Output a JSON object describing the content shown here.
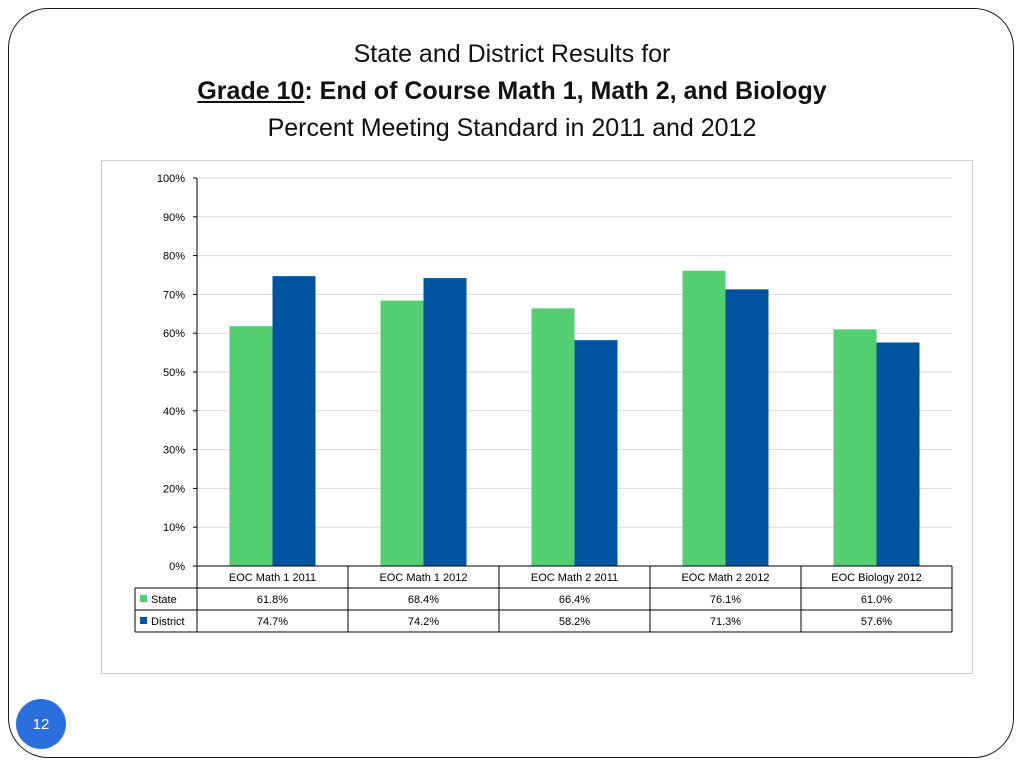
{
  "title": {
    "line1": "State and District Results for",
    "line2_grade": "Grade 10",
    "line2_rest": ": End of Course Math 1, Math 2, and Biology",
    "line3": "Percent Meeting Standard in 2011 and 2012"
  },
  "page_number": "12",
  "colors": {
    "state": "#53cf72",
    "district": "#00539f",
    "gridline": "#d9d9d9",
    "axis": "#000000"
  },
  "chart_data": {
    "type": "bar",
    "categories": [
      "EOC Math 1 2011",
      "EOC Math 1 2012",
      "EOC Math 2 2011",
      "EOC Math 2 2012",
      "EOC Biology 2012"
    ],
    "series": [
      {
        "name": "State",
        "values": [
          61.8,
          68.4,
          66.4,
          76.1,
          61.0
        ],
        "labels": [
          "61.8%",
          "68.4%",
          "66.4%",
          "76.1%",
          "61.0%"
        ]
      },
      {
        "name": "District",
        "values": [
          74.7,
          74.2,
          58.2,
          71.3,
          57.6
        ],
        "labels": [
          "74.7%",
          "74.2%",
          "58.2%",
          "71.3%",
          "57.6%"
        ]
      }
    ],
    "ylim": [
      0,
      100
    ],
    "yticks": [
      "0%",
      "10%",
      "20%",
      "30%",
      "40%",
      "50%",
      "60%",
      "70%",
      "80%",
      "90%",
      "100%"
    ],
    "grid": true,
    "legend": "data-table"
  }
}
